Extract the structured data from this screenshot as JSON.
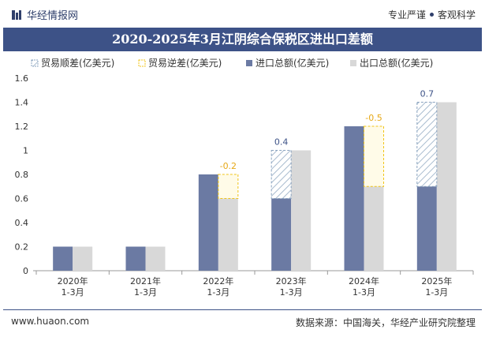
{
  "header": {
    "brand": "华经情报网",
    "tagline_left": "专业严谨",
    "tagline_right": "客观科学"
  },
  "footer": {
    "url": "www.huaon.com",
    "source": "数据来源：中国海关，华经产业研究院整理"
  },
  "colors": {
    "import": "#6b7aa3",
    "export": "#d8d8d8",
    "surplus": "#8aa3bf",
    "deficit": "#f0c419",
    "surplus_label": "#3d5287",
    "deficit_label": "#e6a817"
  },
  "chart_data": {
    "type": "bar",
    "title": "2020-2025年3月江阴综合保税区进出口差额",
    "categories": [
      "2020年\n1-3月",
      "2021年\n1-3月",
      "2022年\n1-3月",
      "2023年\n1-3月",
      "2024年\n1-3月",
      "2025年\n1-3月"
    ],
    "ylim": [
      0,
      1.6
    ],
    "yticks": [
      "0",
      "0.2",
      "0.4",
      "0.6",
      "0.8",
      "1",
      "1.2",
      "1.4",
      "1.6"
    ],
    "legend": [
      "贸易顺差(亿美元)",
      "贸易逆差(亿美元)",
      "进口总额(亿美元)",
      "出口总额(亿美元)"
    ],
    "legend_position": "top-left",
    "series": [
      {
        "name": "进口总额(亿美元)",
        "values": [
          0.2,
          0.2,
          0.8,
          0.6,
          1.2,
          0.7
        ]
      },
      {
        "name": "出口总额(亿美元)",
        "values": [
          0.2,
          0.2,
          0.6,
          1.0,
          0.7,
          1.4
        ]
      }
    ],
    "balance": {
      "values": [
        0,
        0,
        -0.2,
        0.4,
        -0.5,
        0.7
      ],
      "labels": [
        "",
        "",
        "-0.2",
        "0.4",
        "-0.5",
        "0.7"
      ]
    }
  }
}
